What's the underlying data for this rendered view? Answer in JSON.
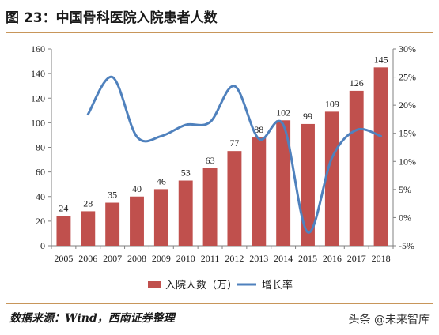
{
  "header": {
    "title": "图 23：中国骨科医院入院患者人数"
  },
  "footer": {
    "source": "数据来源：Wind，西南证券整理",
    "watermark": "头条 @未来智库"
  },
  "colors": {
    "bar": "#c0504d",
    "line": "#4f81bd",
    "rule": "#c8965a"
  },
  "chart_data": {
    "type": "bar",
    "categories": [
      "2005",
      "2006",
      "2007",
      "2008",
      "2009",
      "2010",
      "2011",
      "2012",
      "2013",
      "2014",
      "2015",
      "2016",
      "2017",
      "2018"
    ],
    "series": [
      {
        "name": "入院人数（万）",
        "type": "bar",
        "axis": "left",
        "values": [
          24,
          28,
          35,
          40,
          46,
          53,
          63,
          77,
          88,
          102,
          99,
          109,
          126,
          145
        ]
      },
      {
        "name": "增长率",
        "type": "line",
        "axis": "right",
        "values": [
          null,
          18.4,
          25.0,
          14.4,
          14.5,
          16.5,
          17.0,
          23.4,
          14.0,
          16.5,
          -2.6,
          10.7,
          15.6,
          14.5
        ]
      }
    ],
    "y_left": {
      "min": 0,
      "max": 160,
      "ticks": [
        0,
        20,
        40,
        60,
        80,
        100,
        120,
        140,
        160
      ]
    },
    "y_right": {
      "min": -5,
      "max": 30,
      "ticks": [
        "-5%",
        "0%",
        "5%",
        "10%",
        "15%",
        "20%",
        "25%",
        "30%"
      ]
    },
    "legend_position": "bottom",
    "data_labels": true
  }
}
